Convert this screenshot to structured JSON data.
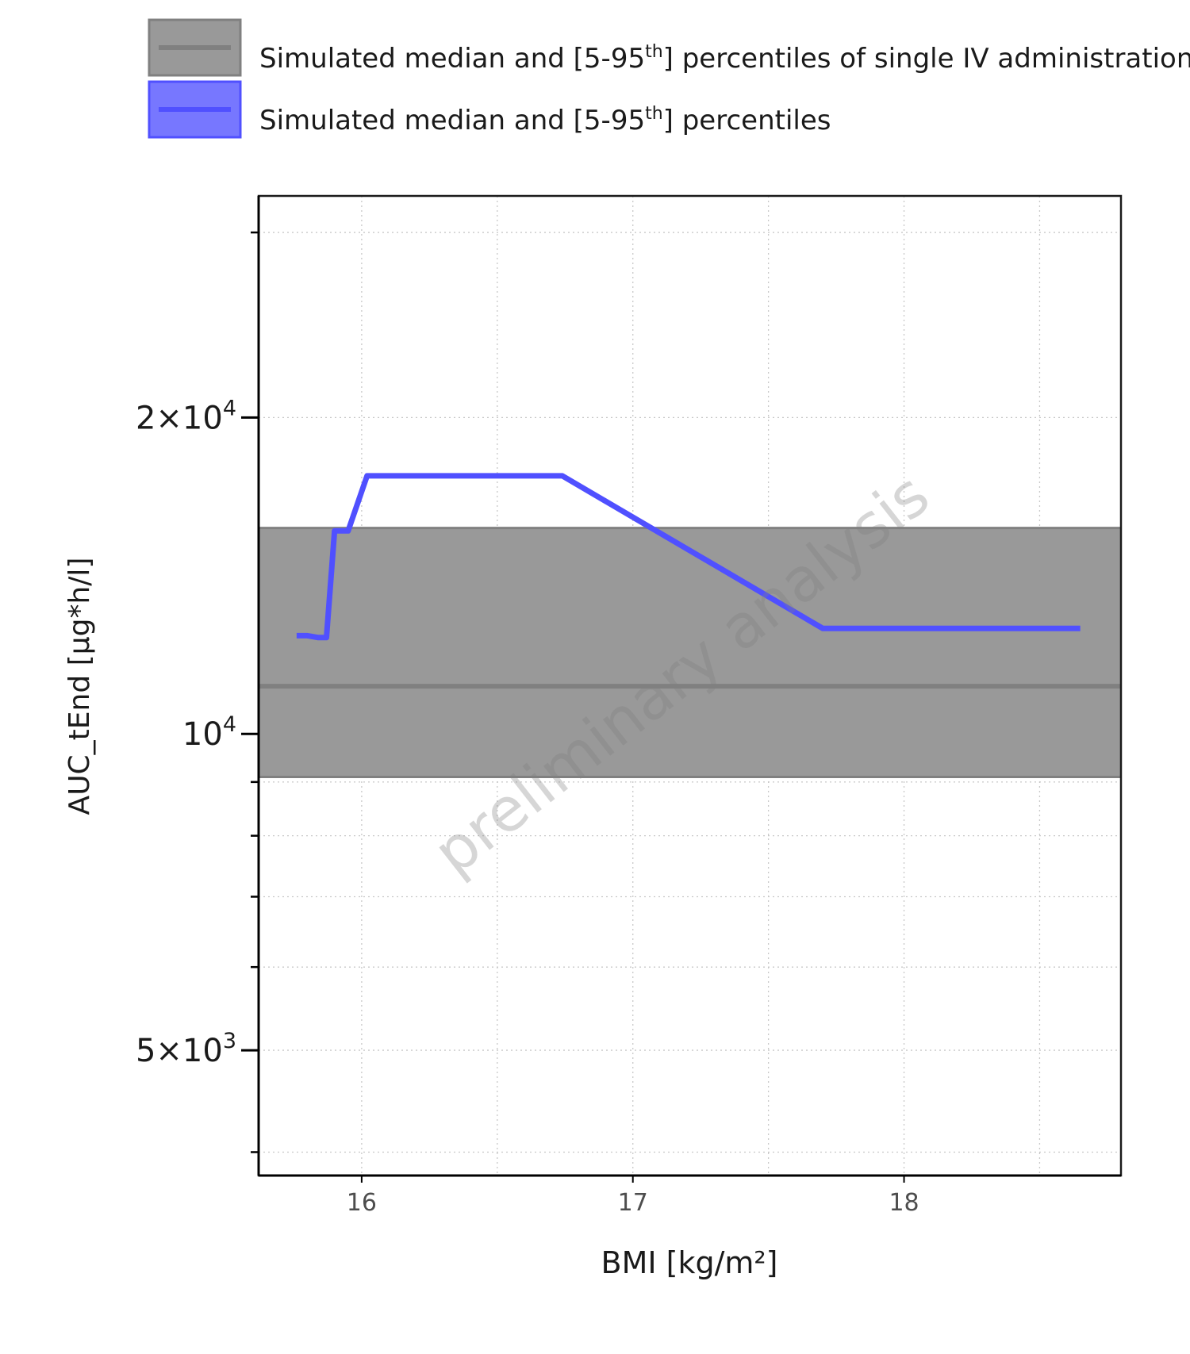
{
  "chart_data": {
    "type": "line",
    "xlabel": "BMI [kg/m²]",
    "ylabel": "AUC_tEnd [µg*h/l]",
    "y_scale": "log",
    "xlim": [
      15.62,
      18.8
    ],
    "ylim": [
      3800,
      32500
    ],
    "grid": true,
    "legend_position": "top",
    "x_ticks": [
      {
        "value": 16,
        "label": "16"
      },
      {
        "value": 17,
        "label": "17"
      },
      {
        "value": 18,
        "label": "18"
      }
    ],
    "y_major_ticks": [
      {
        "value": 5000,
        "mantissa": "5",
        "exponent": "3"
      },
      {
        "value": 10000,
        "mantissa": "",
        "exponent": "4"
      },
      {
        "value": 20000,
        "mantissa": "2",
        "exponent": "4"
      }
    ],
    "y_minor_ticks": [
      4000,
      6000,
      7000,
      8000,
      9000,
      30000
    ],
    "x_minor_gridlines": [
      16.5,
      17.5,
      18.5
    ],
    "watermark": "preliminary analysis",
    "legend": [
      {
        "label_prefix": "Simulated median and [5-95",
        "label_sup": "th",
        "label_suffix": "] percentiles of single IV administration",
        "fill": "#999999",
        "line": "#808080"
      },
      {
        "label_prefix": "Simulated median and [5-95",
        "label_sup": "th",
        "label_suffix": "] percentiles",
        "fill": "#7777ff",
        "line": "#5050ff"
      }
    ],
    "reference_band": {
      "name": "single IV administration",
      "median": 11100,
      "p5": 9100,
      "p95": 15700,
      "fill": "#999999",
      "line": "#808080"
    },
    "series": [
      {
        "color": "#5050ff",
        "x": [
          15.76,
          15.8,
          15.84,
          15.87,
          15.9,
          15.93,
          15.95,
          16.02,
          16.74,
          17.7,
          18.65
        ],
        "y": [
          12400,
          12400,
          12350,
          12350,
          15600,
          15600,
          15600,
          17600,
          17600,
          12600,
          12600
        ]
      }
    ]
  }
}
